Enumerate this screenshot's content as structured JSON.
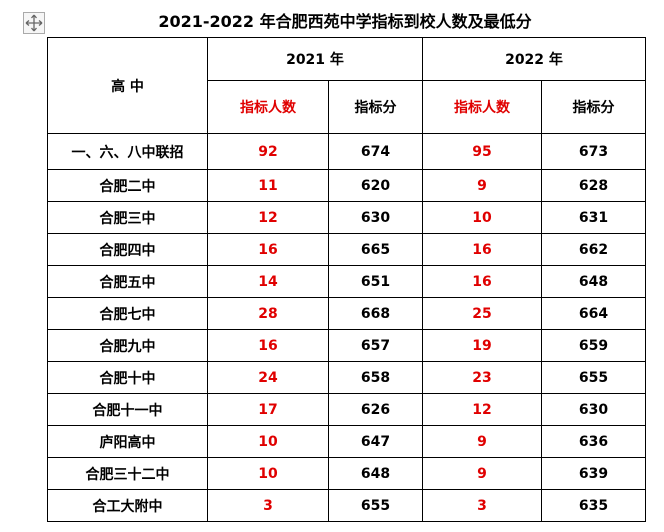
{
  "title": "2021-2022 年合肥西苑中学指标到校人数及最低分",
  "table": {
    "header": {
      "school": "高 中",
      "years": [
        "2021 年",
        "2022 年"
      ],
      "columns": [
        "指标人数",
        "指标分",
        "指标人数",
        "指标分"
      ]
    },
    "rows": [
      [
        "一、六、八中联招",
        "92",
        "674",
        "95",
        "673"
      ],
      [
        "合肥二中",
        "11",
        "620",
        "9",
        "628"
      ],
      [
        "合肥三中",
        "12",
        "630",
        "10",
        "631"
      ],
      [
        "合肥四中",
        "16",
        "665",
        "16",
        "662"
      ],
      [
        "合肥五中",
        "14",
        "651",
        "16",
        "648"
      ],
      [
        "合肥七中",
        "28",
        "668",
        "25",
        "664"
      ],
      [
        "合肥九中",
        "16",
        "657",
        "19",
        "659"
      ],
      [
        "合肥十中",
        "24",
        "658",
        "23",
        "655"
      ],
      [
        "合肥十一中",
        "17",
        "626",
        "12",
        "630"
      ],
      [
        "庐阳高中",
        "10",
        "647",
        "9",
        "636"
      ],
      [
        "合肥三十二中",
        "10",
        "648",
        "9",
        "639"
      ],
      [
        "合工大附中",
        "3",
        "655",
        "3",
        "635"
      ]
    ]
  }
}
